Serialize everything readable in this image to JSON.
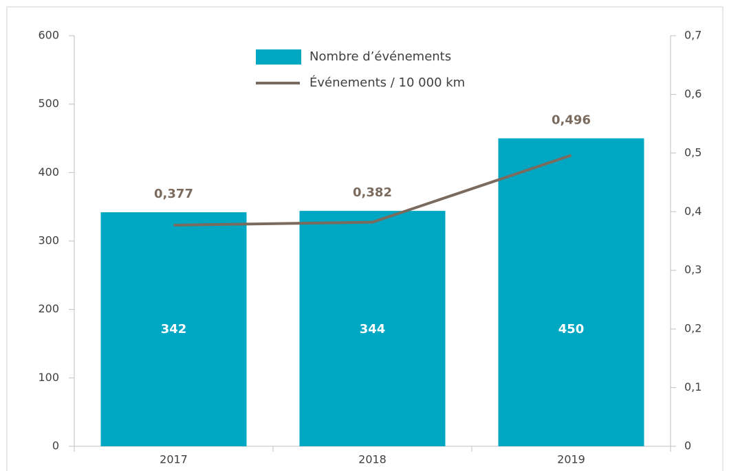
{
  "chart_data": {
    "type": "bar",
    "categories": [
      "2017",
      "2018",
      "2019"
    ],
    "series": [
      {
        "name": "Nombre d’événements",
        "color": "#00a7c2",
        "values": [
          342,
          344,
          450
        ]
      },
      {
        "name": "Événements / 10 000 km",
        "type": "line",
        "axis": "y2",
        "color": "#7b6b5e",
        "values": [
          0.377,
          0.382,
          0.496
        ],
        "value_labels": [
          "0,377",
          "0,382",
          "0,496"
        ]
      }
    ],
    "ylim": [
      0,
      600
    ],
    "yticks": [
      0,
      100,
      200,
      300,
      400,
      500,
      600
    ],
    "y2lim": [
      0,
      0.7
    ],
    "y2ticks": [
      0,
      {
        "value": 0.1,
        "label": "0,1"
      },
      {
        "value": 0.2,
        "label": "0,2"
      },
      {
        "value": 0.3,
        "label": "0,3"
      },
      {
        "value": 0.4,
        "label": "0,4"
      },
      {
        "value": 0.5,
        "label": "0,5"
      },
      {
        "value": 0.6,
        "label": "0,6"
      },
      {
        "value": 0.7,
        "label": "0,7"
      }
    ],
    "legend": "top"
  }
}
